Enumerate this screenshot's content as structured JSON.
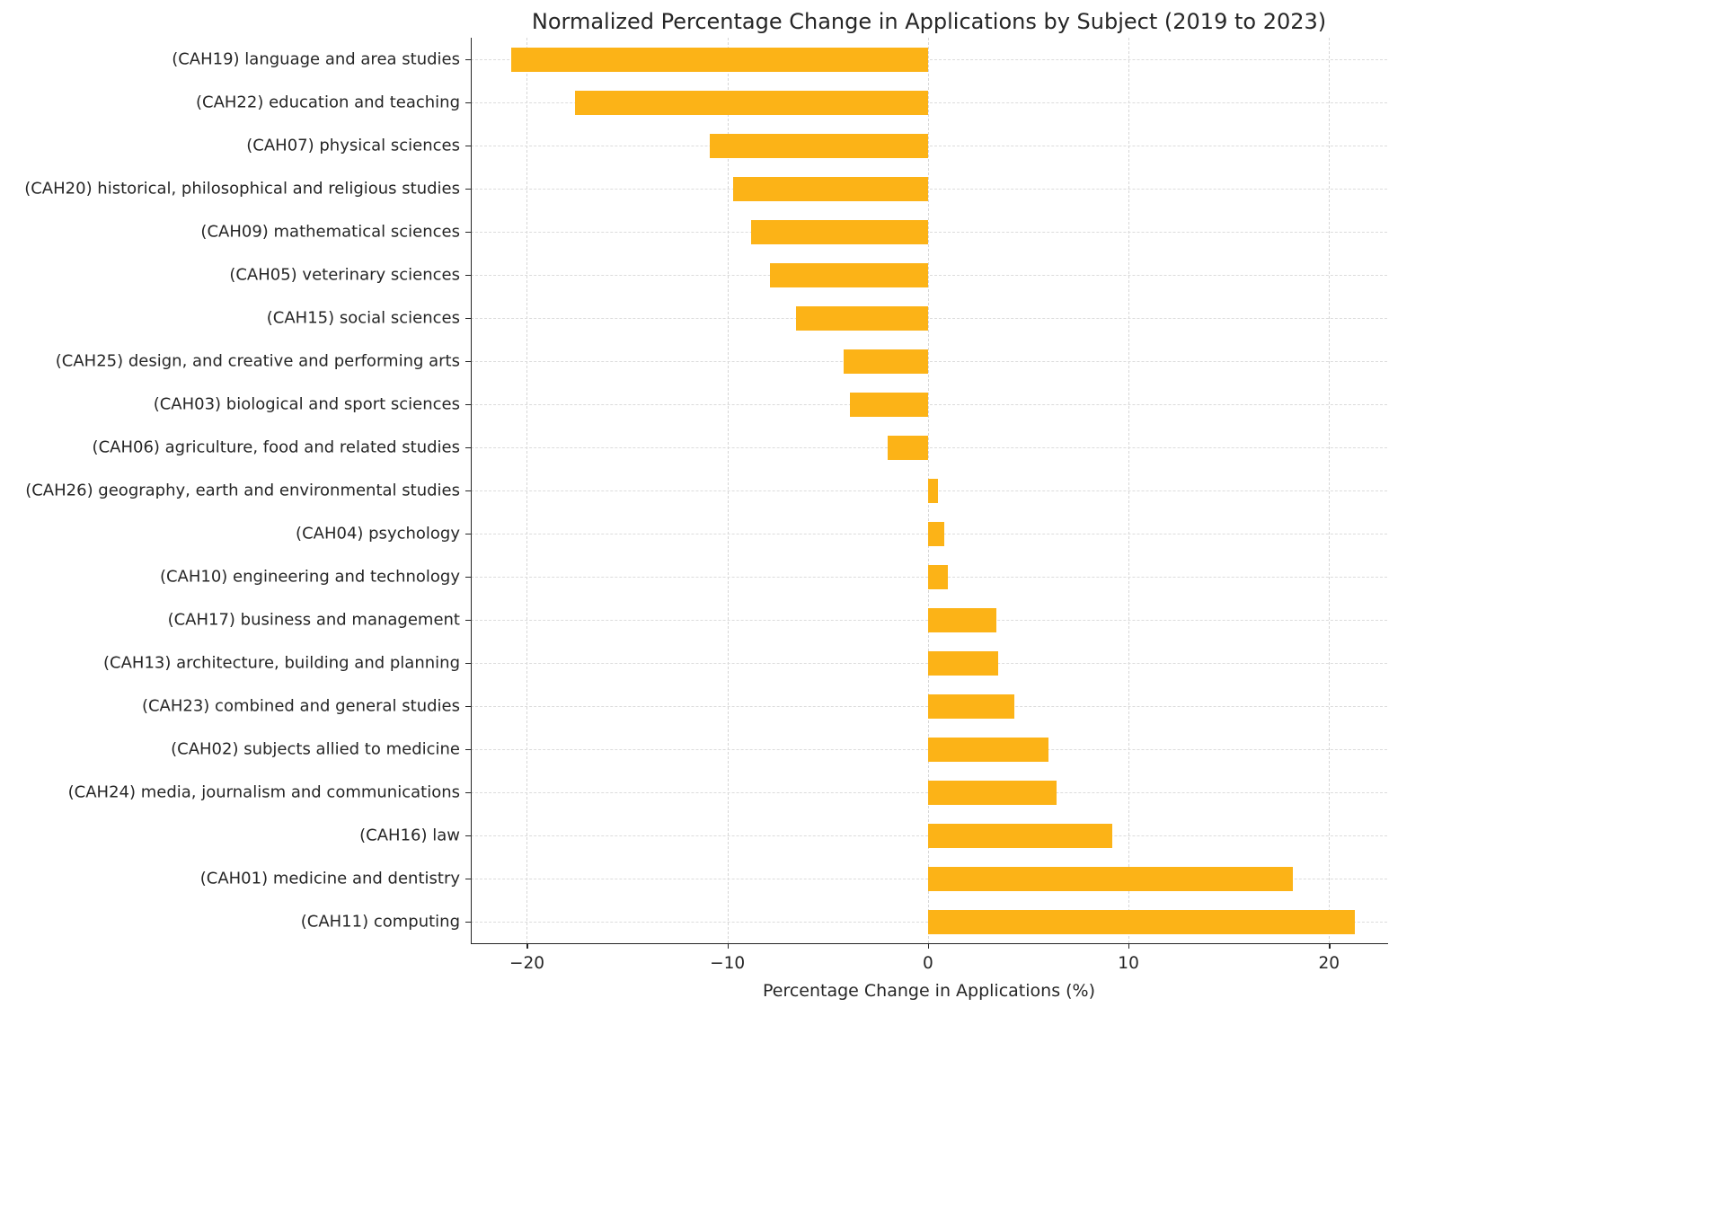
{
  "chart_data": {
    "type": "bar",
    "orientation": "horizontal",
    "title": "Normalized Percentage Change in Applications by Subject (2019 to 2023)",
    "xlabel": "Percentage Change in Applications (%)",
    "ylabel": "",
    "categories": [
      "(CAH19) language and area studies",
      "(CAH22) education and teaching",
      "(CAH07) physical sciences",
      "(CAH20) historical, philosophical and religious studies",
      "(CAH09) mathematical sciences",
      "(CAH05) veterinary sciences",
      "(CAH15) social sciences",
      "(CAH25) design, and creative and performing arts",
      "(CAH03) biological and sport sciences",
      "(CAH06) agriculture, food and related studies",
      "(CAH26) geography, earth and environmental studies",
      "(CAH04) psychology",
      "(CAH10) engineering and technology",
      "(CAH17) business and management",
      "(CAH13) architecture, building and planning",
      "(CAH23) combined and general studies",
      "(CAH02) subjects allied to medicine",
      "(CAH24) media, journalism and communications",
      "(CAH16) law",
      "(CAH01) medicine and dentistry",
      "(CAH11) computing"
    ],
    "values": [
      -20.8,
      -17.6,
      -10.9,
      -9.7,
      -8.8,
      -7.9,
      -6.6,
      -4.2,
      -3.9,
      -2.0,
      0.5,
      0.8,
      1.0,
      3.4,
      3.5,
      4.3,
      6.0,
      6.4,
      9.2,
      18.2,
      21.3
    ],
    "xlim": [
      -22.8,
      22.9
    ],
    "xticks": [
      -20,
      -10,
      0,
      10,
      20
    ],
    "xtick_labels": [
      "−20",
      "−10",
      "0",
      "10",
      "20"
    ],
    "bar_color": "#fcb317",
    "grid": true,
    "legend": "none"
  }
}
